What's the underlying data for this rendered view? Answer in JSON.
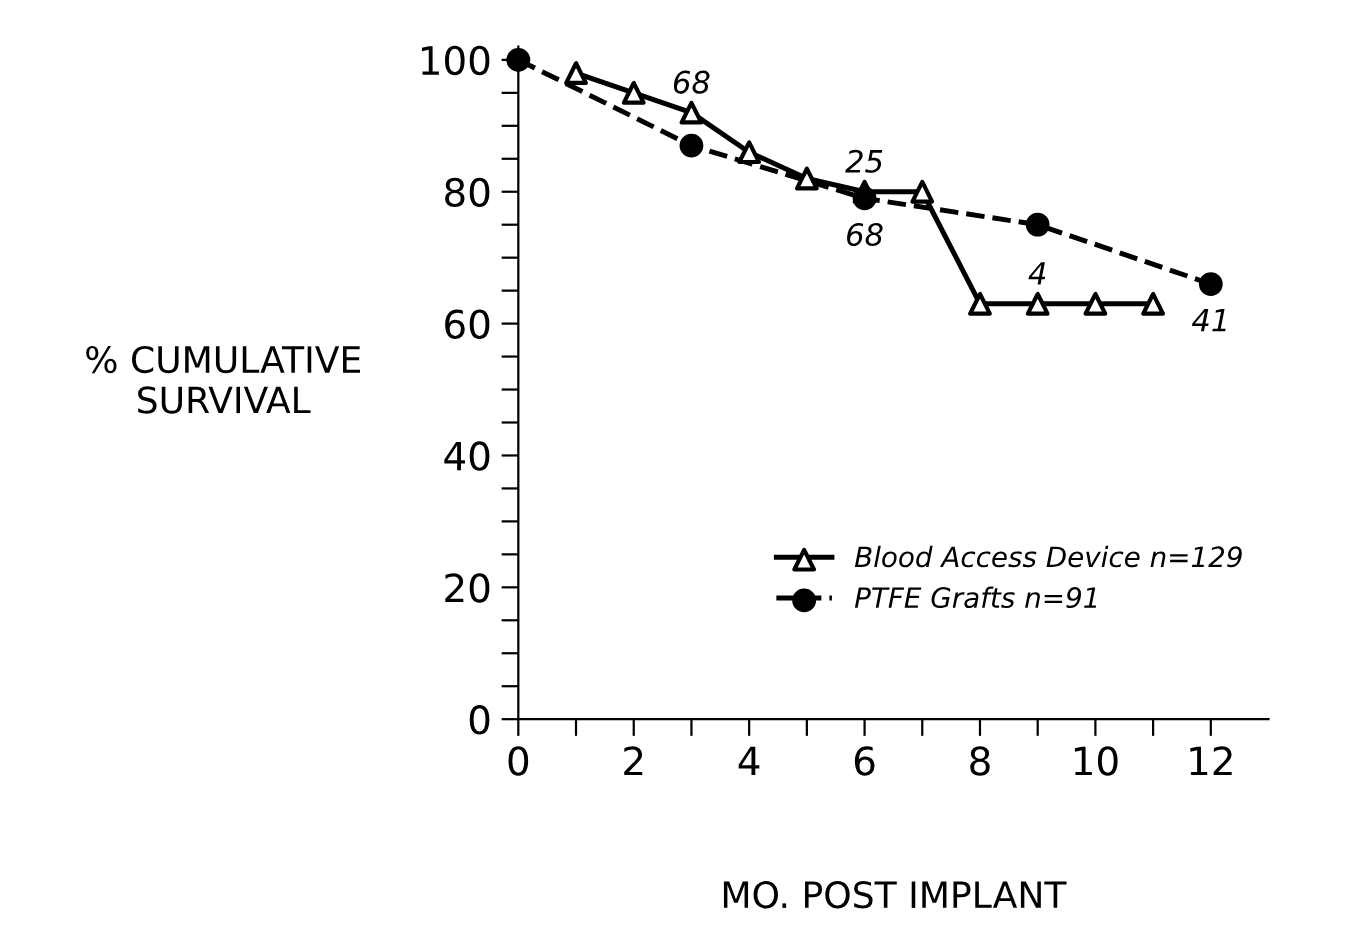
{
  "chart_data": {
    "type": "line",
    "xlabel": "MO. POST IMPLANT",
    "ylabel": "% CUMULATIVE\nSURVIVAL",
    "xlim": [
      0,
      13
    ],
    "ylim": [
      0,
      102
    ],
    "xticks": [
      0,
      {
        "value": 1,
        "label": null
      },
      2,
      {
        "value": 3,
        "label": null
      },
      4,
      {
        "value": 5,
        "label": null
      },
      6,
      {
        "value": 7,
        "label": null
      },
      8,
      {
        "value": 9,
        "label": null
      },
      10,
      {
        "value": 11,
        "label": null
      },
      12
    ],
    "yticks": [
      0,
      {
        "value": 5,
        "label": null
      },
      {
        "value": 10,
        "label": null
      },
      {
        "value": 15,
        "label": null
      },
      20,
      {
        "value": 25,
        "label": null
      },
      {
        "value": 30,
        "label": null
      },
      {
        "value": 35,
        "label": null
      },
      40,
      {
        "value": 45,
        "label": null
      },
      {
        "value": 50,
        "label": null
      },
      {
        "value": 55,
        "label": null
      },
      60,
      {
        "value": 65,
        "label": null
      },
      {
        "value": 70,
        "label": null
      },
      {
        "value": 75,
        "label": null
      },
      80,
      {
        "value": 85,
        "label": null
      },
      {
        "value": 90,
        "label": null
      },
      {
        "value": 95,
        "label": null
      },
      100
    ],
    "legend": "bottom right",
    "grid": false,
    "series": [
      {
        "name": "Blood Access Device n=129",
        "color": "#000000",
        "marker": "triangle",
        "line_style": "solid",
        "x": [
          1,
          2,
          3,
          4,
          5,
          6,
          7,
          8,
          9,
          10,
          11
        ],
        "values": [
          98,
          95,
          92,
          86,
          82,
          80,
          80,
          63,
          63,
          63,
          63
        ]
      },
      {
        "name": "PTFE Grafts n=91",
        "color": "#000000",
        "marker": "circle",
        "line_style": "dashed",
        "x": [
          0,
          3,
          6,
          9,
          12
        ],
        "values": [
          100,
          87,
          79,
          75,
          66
        ]
      }
    ],
    "annotations": [
      {
        "text": "68",
        "x": 3,
        "y": 92
      },
      {
        "text": "25",
        "x": 6,
        "y": 80
      },
      {
        "text": "68",
        "x": 6,
        "y": 79
      },
      {
        "text": "4",
        "x": 9,
        "y": 63
      },
      {
        "text": "41",
        "x": 12,
        "y": 66
      }
    ]
  }
}
